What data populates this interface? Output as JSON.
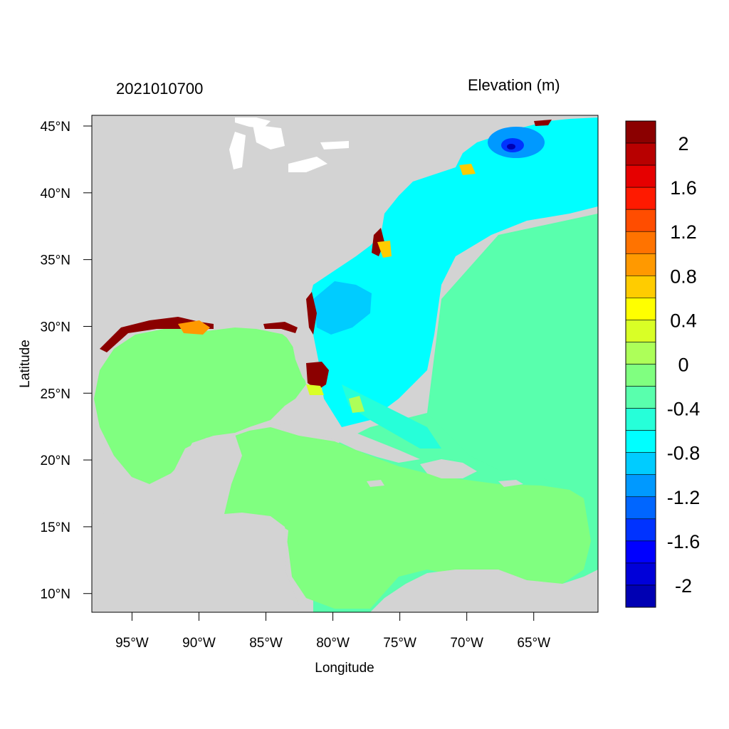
{
  "header": {
    "date_label": "2021010700",
    "variable_label": "Elevation (m)"
  },
  "axes": {
    "xlabel": "Longitude",
    "ylabel": "Latitude",
    "x_ticks": [
      {
        "lon": -95,
        "label": "95°W"
      },
      {
        "lon": -90,
        "label": "90°W"
      },
      {
        "lon": -85,
        "label": "85°W"
      },
      {
        "lon": -80,
        "label": "80°W"
      },
      {
        "lon": -75,
        "label": "75°W"
      },
      {
        "lon": -70,
        "label": "70°W"
      },
      {
        "lon": -65,
        "label": "65°W"
      }
    ],
    "y_ticks": [
      {
        "lat": 45,
        "label": "45°N"
      },
      {
        "lat": 40,
        "label": "40°N"
      },
      {
        "lat": 35,
        "label": "35°N"
      },
      {
        "lat": 30,
        "label": "30°N"
      },
      {
        "lat": 25,
        "label": "25°N"
      },
      {
        "lat": 20,
        "label": "20°N"
      },
      {
        "lat": 15,
        "label": "15°N"
      },
      {
        "lat": 10,
        "label": "10°N"
      }
    ],
    "lon_range": [
      -98,
      -60.2
    ],
    "lat_range": [
      8.6,
      45.8
    ]
  },
  "colorbar": {
    "colors_top_to_bottom": [
      "#8b0000",
      "#b80000",
      "#e60000",
      "#ff1a00",
      "#ff4d00",
      "#ff7300",
      "#ff9900",
      "#ffcc00",
      "#ffff00",
      "#d9ff26",
      "#adff59",
      "#80ff80",
      "#59ffad",
      "#26ffd9",
      "#00ffff",
      "#00ccff",
      "#0099ff",
      "#0066ff",
      "#0033ff",
      "#0000ff",
      "#0000d9",
      "#0000b3"
    ],
    "labels": [
      {
        "value": 2,
        "label": "2"
      },
      {
        "value": 1.6,
        "label": "1.6"
      },
      {
        "value": 1.2,
        "label": "1.2"
      },
      {
        "value": 0.8,
        "label": "0.8"
      },
      {
        "value": 0.4,
        "label": "0.4"
      },
      {
        "value": 0,
        "label": "0"
      },
      {
        "value": -0.4,
        "label": "-0.4"
      },
      {
        "value": -0.8,
        "label": "-0.8"
      },
      {
        "value": -1.2,
        "label": "-1.2"
      },
      {
        "value": -1.6,
        "label": "-1.6"
      },
      {
        "value": -2,
        "label": "-2"
      }
    ]
  },
  "map": {
    "land_color": "#d3d3d3",
    "deep_ocean_color": "#59ffad",
    "gulf_caribbean_color": "#80ff80",
    "atlantic_color": "#00ffff",
    "low_anomaly_color": "#00ccff",
    "surge_color": "#8b0000"
  }
}
